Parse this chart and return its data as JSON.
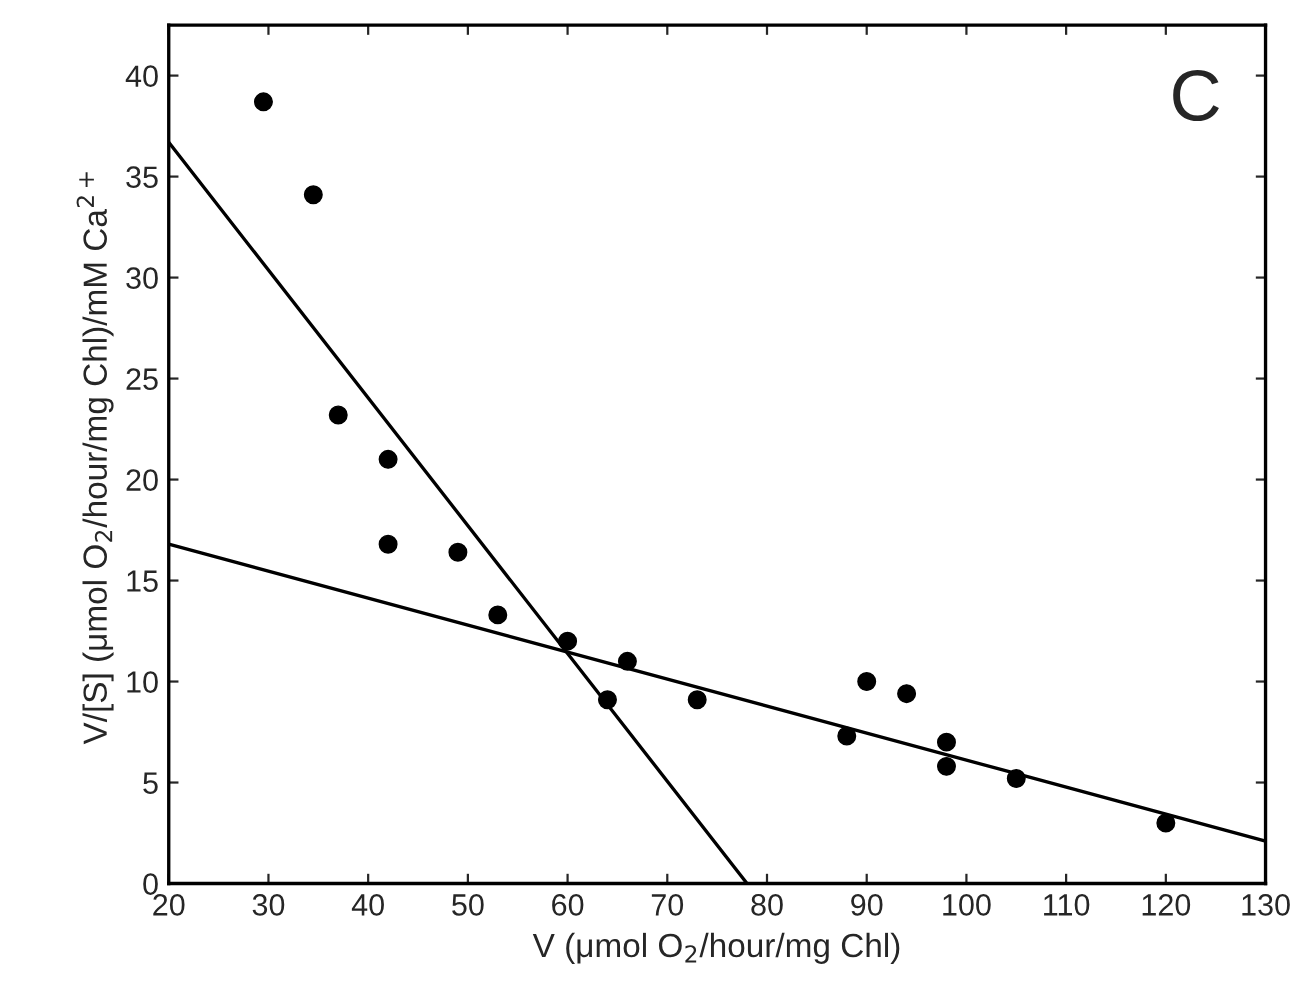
{
  "chart_data": {
    "type": "scatter",
    "xlabel": "V (μmol O$_{2}$/hour/mg Chl)",
    "ylabel": "V/[S] (μmol O$_{2}$/hour/mg Chl)/mM Ca$^{2+}$",
    "annotations": [
      "C"
    ],
    "xlim": [
      20,
      130
    ],
    "xticks": [
      20,
      30,
      40,
      50,
      60,
      70,
      80,
      90,
      100,
      110,
      120,
      130
    ],
    "ylim": [
      0,
      42.5
    ],
    "yticks": [
      0,
      5,
      10,
      15,
      20,
      25,
      30,
      35,
      40
    ],
    "grid": false,
    "series": [
      {
        "marker": "circle",
        "color": "#000000",
        "x": [
          29.5,
          34.5,
          37,
          42,
          42,
          49,
          53,
          60,
          64,
          66,
          73,
          88,
          90,
          94,
          98,
          98,
          105,
          120
        ],
        "values": [
          38.7,
          34.1,
          23.2,
          21,
          16.8,
          16.4,
          13.3,
          12,
          9.1,
          11,
          9.1,
          7.3,
          10,
          9.4,
          7,
          5.8,
          5.2,
          3
        ]
      },
      {
        "type": "line",
        "marker": "none",
        "color": "#000000",
        "x": [
          20,
          78
        ],
        "values": [
          36.7,
          0
        ]
      },
      {
        "type": "line",
        "marker": "none",
        "color": "#000000",
        "x": [
          20,
          130
        ],
        "values": [
          16.8,
          2.1
        ]
      }
    ]
  }
}
